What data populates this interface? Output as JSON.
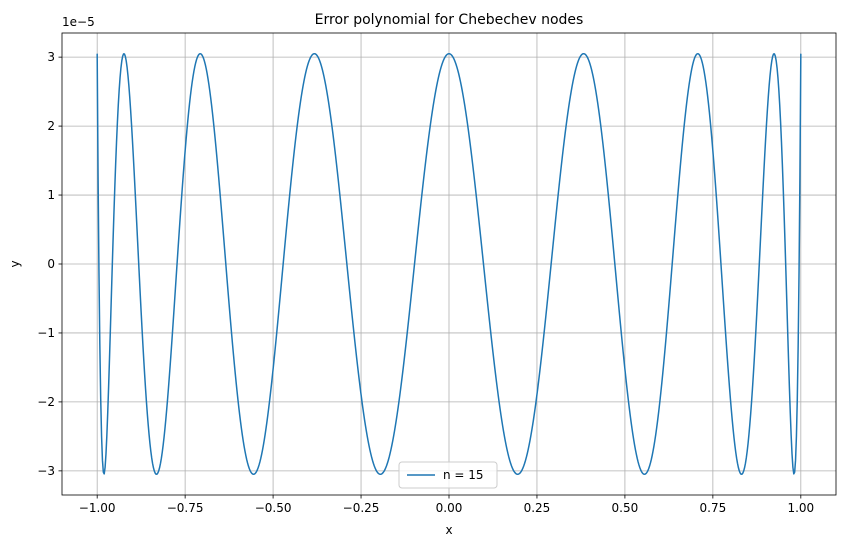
{
  "chart_data": {
    "type": "line",
    "title": "Error polynomial for Chebechev nodes",
    "xlabel": "x",
    "ylabel": "y",
    "offset_text": "1e−5",
    "xlim": [
      -1.1,
      1.1
    ],
    "ylim": [
      -3.35e-05,
      3.35e-05
    ],
    "xticks": [
      -1.0,
      -0.75,
      -0.5,
      -0.25,
      0.0,
      0.25,
      0.5,
      0.75,
      1.0
    ],
    "xtick_labels": [
      "−1.00",
      "−0.75",
      "−0.50",
      "−0.25",
      "0.00",
      "0.25",
      "0.50",
      "0.75",
      "1.00"
    ],
    "yticks": [
      -3e-05,
      -2e-05,
      -1e-05,
      0,
      1e-05,
      2e-05,
      3e-05
    ],
    "ytick_labels": [
      "−3",
      "−2",
      "−1",
      "0",
      "1",
      "2",
      "3"
    ],
    "grid": true,
    "legend_position": "lower center",
    "series": [
      {
        "name": "n = 15",
        "color": "#1f77b4",
        "function": "chebyshev_T16_scaled",
        "amplitude": 3.05e-05,
        "degree": 16,
        "x_range": [
          -1.0,
          1.0
        ],
        "samples": 801
      }
    ]
  }
}
